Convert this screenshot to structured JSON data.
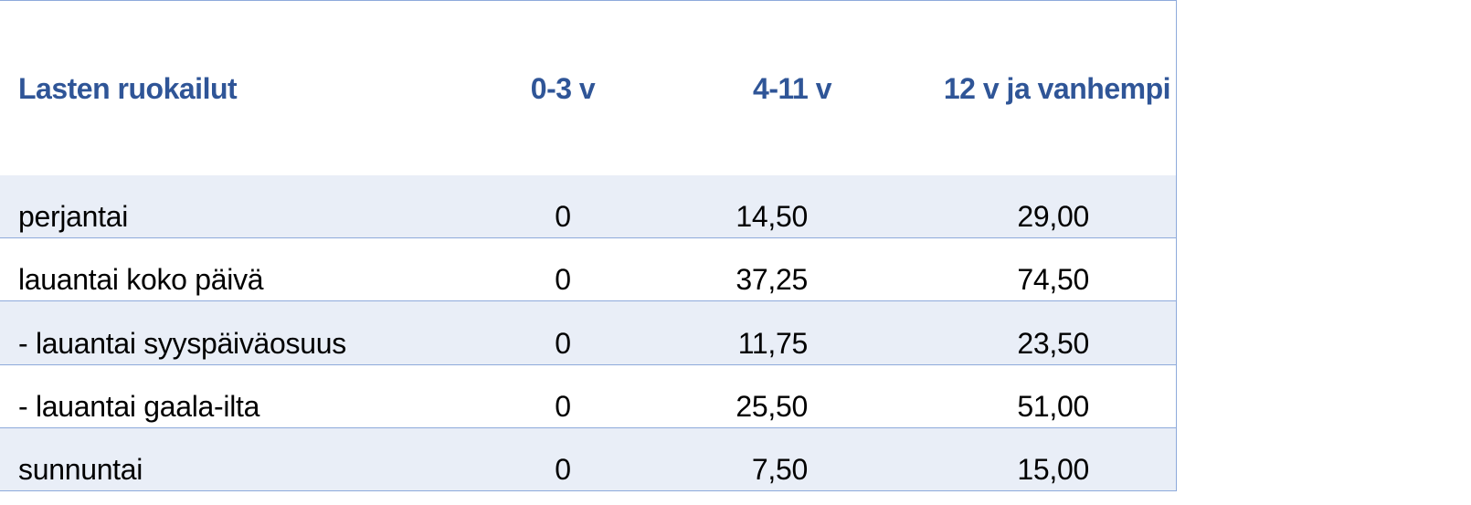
{
  "table": {
    "header": [
      "Lasten ruokailut",
      "0-3 v",
      "4-11 v",
      "12 v ja vanhempi"
    ],
    "rows": [
      [
        "perjantai",
        "0",
        "14,50",
        "29,00"
      ],
      [
        "lauantai koko päivä",
        "0",
        "37,25",
        "74,50"
      ],
      [
        "- lauantai syyspäiväosuus",
        "0",
        "11,75",
        "23,50"
      ],
      [
        "- lauantai gaala-ilta",
        "0",
        "25,50",
        "51,00"
      ],
      [
        "sunnuntai",
        "0",
        "7,50",
        "15,00"
      ]
    ]
  }
}
